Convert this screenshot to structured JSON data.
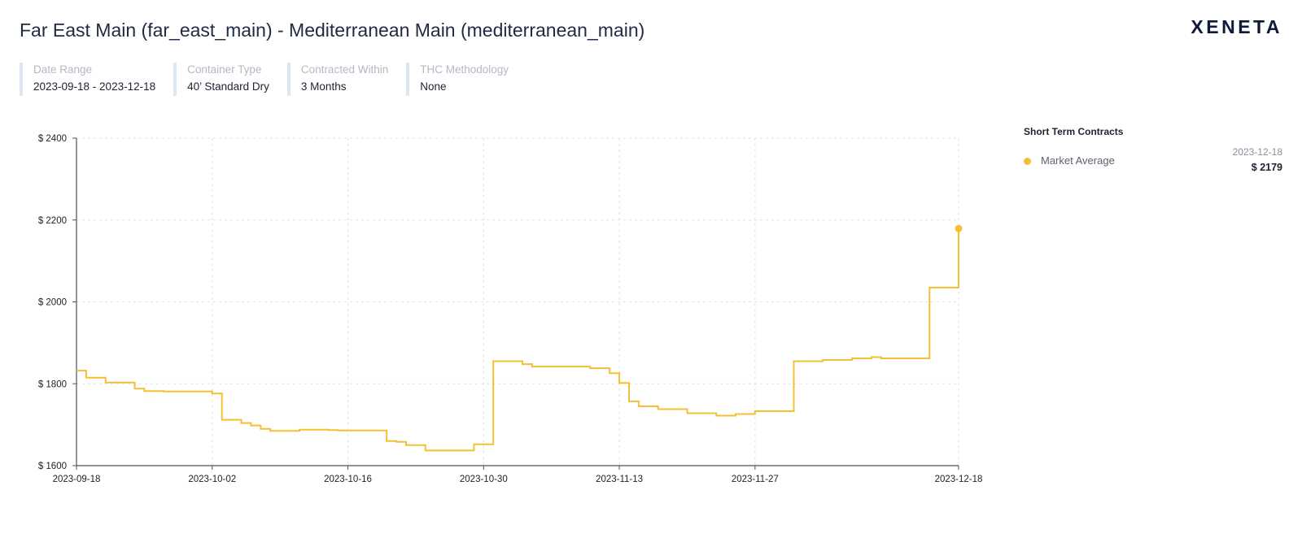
{
  "header": {
    "title": "Far East Main (far_east_main) - Mediterranean Main (mediterranean_main)",
    "logo": "XENETA"
  },
  "filters": [
    {
      "label": "Date Range",
      "value": "2023-09-18 - 2023-12-18"
    },
    {
      "label": "Container Type",
      "value": "40’ Standard Dry"
    },
    {
      "label": "Contracted Within",
      "value": "3 Months"
    },
    {
      "label": "THC Methodology",
      "value": "None"
    }
  ],
  "legend": {
    "title": "Short Term Contracts",
    "series_name": "Market Average",
    "latest_date": "2023-12-18",
    "latest_value": "$ 2179"
  },
  "colors": {
    "series": "#f4bf33",
    "axis": "#4a5060",
    "grid": "#dcdfe5"
  },
  "chart_data": {
    "type": "line",
    "step": true,
    "title": "",
    "xlabel": "",
    "ylabel": "",
    "ylim": [
      1600,
      2400
    ],
    "y_ticks": [
      "$ 1600",
      "$ 1800",
      "$ 2000",
      "$ 2200",
      "$ 2400"
    ],
    "x_ticks": [
      "2023-09-18",
      "2023-10-02",
      "2023-10-16",
      "2023-10-30",
      "2023-11-13",
      "2023-11-27",
      "2023-12-18"
    ],
    "grid": true,
    "legend_position": "right",
    "series": [
      {
        "name": "Market Average",
        "x": [
          "2023-09-18",
          "2023-09-19",
          "2023-09-21",
          "2023-09-24",
          "2023-09-24",
          "2023-09-25",
          "2023-09-27",
          "2023-10-02",
          "2023-10-03",
          "2023-10-05",
          "2023-10-06",
          "2023-10-07",
          "2023-10-08",
          "2023-10-11",
          "2023-10-14",
          "2023-10-15",
          "2023-10-20",
          "2023-10-21",
          "2023-10-22",
          "2023-10-24",
          "2023-10-29",
          "2023-10-31",
          "2023-11-03",
          "2023-11-04",
          "2023-11-10",
          "2023-11-12",
          "2023-11-13",
          "2023-11-14",
          "2023-11-15",
          "2023-11-17",
          "2023-11-20",
          "2023-11-23",
          "2023-11-25",
          "2023-11-27",
          "2023-12-01",
          "2023-12-04",
          "2023-12-07",
          "2023-12-09",
          "2023-12-10",
          "2023-12-15",
          "2023-12-18"
        ],
        "values": [
          1832,
          1815,
          1803,
          1797,
          1788,
          1782,
          1781,
          1776,
          1712,
          1704,
          1698,
          1690,
          1685,
          1688,
          1687,
          1686,
          1660,
          1658,
          1650,
          1637,
          1652,
          1855,
          1848,
          1842,
          1838,
          1826,
          1802,
          1757,
          1745,
          1738,
          1728,
          1722,
          1726,
          1733,
          1855,
          1858,
          1862,
          1865,
          1862,
          2035,
          2179
        ]
      }
    ]
  }
}
